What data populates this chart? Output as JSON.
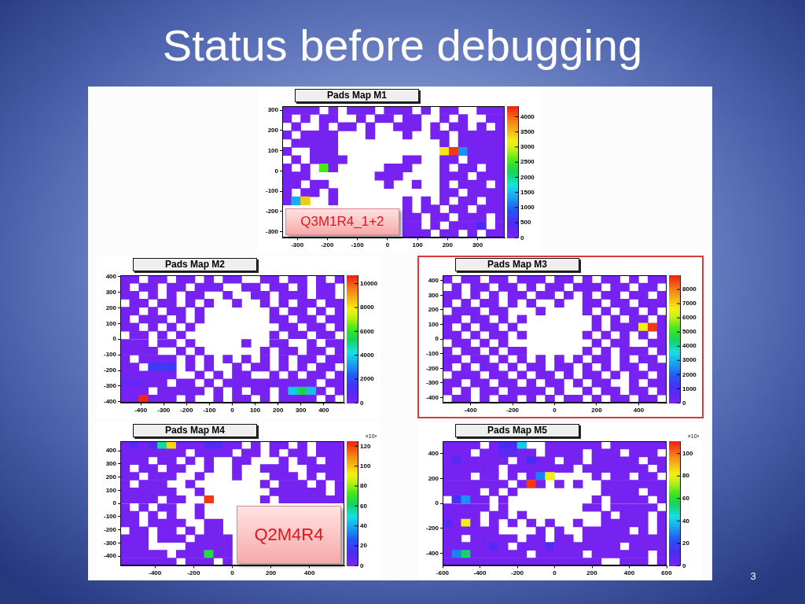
{
  "chart_data": [
    {
      "type": "other",
      "title": "Status before debugging",
      "annotations": [
        "3"
      ]
    },
    {
      "type": "heatmap",
      "title": "Pads Map M1",
      "xlim": [
        -350,
        390
      ],
      "ylim": [
        -330,
        320
      ],
      "xticks": [
        -300,
        -200,
        -100,
        0,
        100,
        200,
        300
      ],
      "yticks": [
        -300,
        -200,
        -100,
        0,
        100,
        200,
        300
      ],
      "clim": [
        0,
        4350
      ],
      "cticks": [
        0,
        500,
        1000,
        1500,
        2000,
        2500,
        3000,
        3500,
        4000
      ],
      "annotations": [
        "Q3M1R4_1+2"
      ],
      "cells": [
        [
          40,
          40,
          40,
          40,
          null,
          40,
          null,
          40,
          40,
          40,
          null,
          40,
          40,
          40,
          null,
          40,
          null,
          40,
          40,
          null,
          null,
          40,
          40,
          40
        ],
        [
          40,
          null,
          40,
          null,
          40,
          40,
          null,
          null,
          40,
          null,
          40,
          40,
          null,
          40,
          40,
          null,
          null,
          40,
          null,
          40,
          null,
          null,
          40,
          40
        ],
        [
          null,
          40,
          null,
          null,
          40,
          null,
          40,
          40,
          null,
          40,
          null,
          null,
          40,
          40,
          40,
          null,
          40,
          null,
          40,
          40,
          null,
          40,
          null,
          40
        ],
        [
          40,
          null,
          40,
          40,
          40,
          40,
          null,
          null,
          null,
          40,
          null,
          null,
          null,
          40,
          null,
          null,
          40,
          40,
          null,
          40,
          40,
          40,
          40,
          40
        ],
        [
          null,
          40,
          40,
          40,
          40,
          40,
          null,
          null,
          null,
          null,
          null,
          null,
          null,
          null,
          null,
          null,
          null,
          40,
          null,
          40,
          40,
          40,
          40,
          40
        ],
        [
          40,
          null,
          null,
          40,
          40,
          40,
          null,
          null,
          null,
          null,
          null,
          null,
          null,
          null,
          null,
          null,
          null,
          3300,
          4200,
          1300,
          40,
          40,
          40,
          40
        ],
        [
          null,
          40,
          null,
          40,
          40,
          40,
          40,
          null,
          null,
          null,
          null,
          null,
          null,
          40,
          40,
          null,
          null,
          40,
          40,
          null,
          40,
          40,
          40,
          40
        ],
        [
          40,
          null,
          40,
          null,
          2600,
          40,
          null,
          null,
          null,
          null,
          null,
          40,
          40,
          40,
          null,
          null,
          null,
          40,
          null,
          40,
          40,
          null,
          40,
          40
        ],
        [
          40,
          40,
          40,
          null,
          null,
          null,
          null,
          null,
          null,
          null,
          40,
          40,
          40,
          null,
          null,
          null,
          null,
          40,
          40,
          40,
          null,
          40,
          40,
          40
        ],
        [
          40,
          40,
          null,
          40,
          40,
          null,
          null,
          null,
          null,
          null,
          null,
          40,
          null,
          null,
          40,
          null,
          null,
          40,
          null,
          40,
          40,
          40,
          null,
          40
        ],
        [
          40,
          null,
          40,
          40,
          null,
          40,
          null,
          null,
          null,
          null,
          null,
          null,
          null,
          null,
          null,
          null,
          null,
          40,
          40,
          null,
          40,
          40,
          40,
          40
        ],
        [
          40,
          1400,
          3400,
          null,
          null,
          40,
          null,
          null,
          null,
          null,
          null,
          null,
          null,
          40,
          null,
          40,
          null,
          40,
          null,
          40,
          40,
          null,
          40,
          40
        ],
        [
          null,
          null,
          null,
          null,
          null,
          null,
          null,
          null,
          null,
          null,
          null,
          null,
          null,
          40,
          null,
          40,
          40,
          null,
          40,
          40,
          null,
          40,
          40,
          40
        ],
        [
          null,
          null,
          null,
          null,
          null,
          null,
          null,
          null,
          null,
          null,
          null,
          null,
          null,
          40,
          40,
          null,
          40,
          40,
          null,
          40,
          40,
          40,
          null,
          40
        ],
        [
          null,
          null,
          null,
          null,
          null,
          null,
          null,
          null,
          null,
          null,
          null,
          null,
          null,
          40,
          40,
          null,
          40,
          null,
          40,
          40,
          40,
          500,
          null,
          40
        ],
        [
          null,
          null,
          null,
          null,
          null,
          null,
          null,
          null,
          null,
          null,
          null,
          null,
          null,
          40,
          40,
          40,
          null,
          40,
          40,
          null,
          40,
          null,
          40,
          40
        ]
      ]
    },
    {
      "type": "heatmap",
      "title": "Pads Map M2",
      "xlim": [
        -490,
        490
      ],
      "ylim": [
        -408,
        408
      ],
      "xticks": [
        -400,
        -300,
        -200,
        -100,
        0,
        100,
        200,
        300,
        400
      ],
      "yticks": [
        -400,
        -300,
        -200,
        -100,
        0,
        100,
        200,
        300,
        400
      ],
      "clim": [
        0,
        10700
      ],
      "cticks": [
        0,
        2000,
        4000,
        6000,
        8000,
        10000
      ],
      "cells": [
        [
          100,
          100,
          null,
          100,
          100,
          null,
          100,
          100,
          null,
          100,
          null,
          100,
          100,
          null,
          null,
          100,
          100,
          null,
          100,
          100,
          null,
          100,
          null,
          100
        ],
        [
          100,
          null,
          100,
          100,
          null,
          100,
          100,
          null,
          100,
          100,
          100,
          null,
          null,
          100,
          100,
          null,
          100,
          100,
          null,
          100,
          null,
          100,
          100,
          null
        ],
        [
          100,
          100,
          null,
          100,
          null,
          100,
          null,
          100,
          100,
          null,
          null,
          100,
          null,
          null,
          100,
          100,
          null,
          100,
          100,
          100,
          null,
          100,
          100,
          null
        ],
        [
          null,
          100,
          100,
          null,
          100,
          100,
          null,
          100,
          null,
          100,
          null,
          null,
          100,
          null,
          null,
          100,
          null,
          100,
          null,
          100,
          100,
          null,
          100,
          100
        ],
        [
          100,
          100,
          null,
          100,
          null,
          100,
          100,
          null,
          100,
          null,
          null,
          null,
          null,
          null,
          null,
          null,
          100,
          null,
          100,
          100,
          null,
          100,
          null,
          100
        ],
        [
          100,
          null,
          100,
          100,
          100,
          null,
          100,
          null,
          100,
          null,
          null,
          null,
          null,
          null,
          null,
          null,
          100,
          100,
          null,
          100,
          100,
          null,
          100,
          100
        ],
        [
          100,
          100,
          null,
          100,
          null,
          100,
          null,
          100,
          null,
          null,
          null,
          null,
          null,
          null,
          null,
          null,
          null,
          100,
          100,
          null,
          100,
          100,
          null,
          100
        ],
        [
          null,
          100,
          100,
          null,
          100,
          null,
          100,
          null,
          null,
          null,
          null,
          null,
          null,
          null,
          null,
          null,
          100,
          null,
          100,
          100,
          null,
          100,
          100,
          null
        ],
        [
          100,
          100,
          100,
          null,
          100,
          100,
          null,
          100,
          null,
          null,
          null,
          null,
          null,
          100,
          null,
          null,
          100,
          100,
          null,
          null,
          100,
          null,
          100,
          100
        ],
        [
          100,
          100,
          100,
          100,
          null,
          null,
          100,
          null,
          100,
          null,
          null,
          null,
          null,
          null,
          null,
          100,
          null,
          100,
          100,
          null,
          100,
          100,
          null,
          100
        ],
        [
          100,
          null,
          100,
          100,
          100,
          100,
          null,
          100,
          null,
          100,
          null,
          100,
          null,
          100,
          null,
          100,
          null,
          100,
          null,
          100,
          100,
          null,
          100,
          100
        ],
        [
          100,
          100,
          null,
          1500,
          1500,
          1500,
          null,
          100,
          null,
          100,
          null,
          null,
          100,
          null,
          100,
          100,
          null,
          100,
          null,
          100,
          null,
          100,
          100,
          null
        ],
        [
          100,
          100,
          100,
          100,
          100,
          100,
          null,
          null,
          100,
          null,
          100,
          null,
          100,
          100,
          null,
          null,
          100,
          null,
          100,
          null,
          100,
          100,
          null,
          100
        ],
        [
          600,
          600,
          600,
          100,
          100,
          null,
          100,
          100,
          null,
          100,
          null,
          100,
          100,
          100,
          100,
          100,
          100,
          100,
          100,
          100,
          100,
          null,
          100,
          100
        ],
        [
          100,
          100,
          100,
          null,
          100,
          100,
          100,
          100,
          100,
          null,
          100,
          null,
          100,
          null,
          100,
          100,
          null,
          100,
          4000,
          5500,
          3800,
          100,
          null,
          100
        ],
        [
          100,
          100,
          10500,
          100,
          100,
          100,
          null,
          100,
          null,
          null,
          100,
          null,
          100,
          100,
          null,
          100,
          null,
          100,
          100,
          100,
          100,
          null,
          100,
          null
        ]
      ]
    },
    {
      "type": "heatmap",
      "title": "Pads Map M3",
      "xlim": [
        -533,
        533
      ],
      "ylim": [
        -437,
        436
      ],
      "xticks": [
        -400,
        -200,
        0,
        200,
        400
      ],
      "yticks": [
        -400,
        -300,
        -200,
        -100,
        0,
        100,
        200,
        300,
        400
      ],
      "clim": [
        0,
        9000
      ],
      "cticks": [
        0,
        1000,
        2000,
        3000,
        4000,
        5000,
        6000,
        7000,
        8000
      ],
      "cells": [
        [
          90,
          null,
          90,
          90,
          null,
          90,
          90,
          null,
          90,
          90,
          90,
          null,
          90,
          90,
          null,
          90,
          null,
          90,
          90,
          null,
          90,
          null,
          90,
          90
        ],
        [
          null,
          90,
          null,
          90,
          90,
          null,
          90,
          90,
          null,
          90,
          null,
          90,
          90,
          null,
          90,
          90,
          90,
          null,
          90,
          90,
          null,
          90,
          90,
          null
        ],
        [
          90,
          90,
          null,
          90,
          null,
          90,
          null,
          90,
          90,
          null,
          90,
          90,
          null,
          90,
          null,
          90,
          null,
          90,
          90,
          null,
          90,
          90,
          null,
          90
        ],
        [
          90,
          null,
          90,
          null,
          90,
          90,
          null,
          90,
          null,
          90,
          null,
          null,
          90,
          null,
          null,
          90,
          90,
          null,
          90,
          90,
          null,
          90,
          90,
          90
        ],
        [
          null,
          90,
          90,
          90,
          null,
          90,
          90,
          null,
          null,
          null,
          90,
          null,
          null,
          null,
          null,
          90,
          null,
          90,
          null,
          90,
          90,
          null,
          90,
          null
        ],
        [
          90,
          90,
          null,
          90,
          90,
          null,
          90,
          null,
          90,
          null,
          null,
          null,
          null,
          null,
          null,
          null,
          90,
          null,
          90,
          null,
          90,
          90,
          null,
          90
        ],
        [
          90,
          null,
          90,
          null,
          90,
          90,
          null,
          90,
          null,
          null,
          null,
          null,
          null,
          null,
          null,
          null,
          90,
          null,
          90,
          90,
          90,
          6500,
          8800,
          90
        ],
        [
          90,
          90,
          null,
          90,
          null,
          90,
          90,
          null,
          90,
          null,
          null,
          null,
          null,
          null,
          null,
          90,
          null,
          90,
          null,
          90,
          null,
          90,
          null,
          90
        ],
        [
          null,
          90,
          90,
          null,
          90,
          null,
          90,
          null,
          null,
          null,
          null,
          null,
          null,
          null,
          null,
          null,
          90,
          null,
          90,
          90,
          null,
          null,
          90,
          90
        ],
        [
          90,
          null,
          90,
          90,
          null,
          90,
          null,
          90,
          90,
          null,
          null,
          null,
          null,
          null,
          null,
          90,
          null,
          90,
          null,
          90,
          90,
          90,
          null,
          90
        ],
        [
          90,
          90,
          null,
          90,
          90,
          null,
          90,
          null,
          90,
          null,
          90,
          null,
          90,
          null,
          90,
          null,
          90,
          90,
          null,
          90,
          null,
          90,
          90,
          null
        ],
        [
          90,
          null,
          90,
          null,
          90,
          90,
          null,
          90,
          null,
          90,
          90,
          null,
          90,
          90,
          null,
          90,
          null,
          90,
          null,
          90,
          90,
          null,
          90,
          90
        ],
        [
          null,
          90,
          90,
          90,
          null,
          90,
          90,
          null,
          90,
          null,
          90,
          90,
          null,
          90,
          null,
          90,
          90,
          null,
          90,
          null,
          90,
          90,
          null,
          90
        ],
        [
          90,
          90,
          null,
          90,
          90,
          null,
          90,
          90,
          null,
          90,
          null,
          90,
          90,
          null,
          90,
          null,
          90,
          90,
          null,
          null,
          90,
          null,
          90,
          90
        ],
        [
          90,
          null,
          90,
          null,
          90,
          90,
          null,
          90,
          90,
          90,
          90,
          null,
          90,
          null,
          null,
          90,
          null,
          90,
          90,
          null,
          90,
          90,
          null,
          90
        ],
        [
          null,
          90,
          90,
          null,
          90,
          null,
          90,
          90,
          null,
          90,
          null,
          90,
          null,
          90,
          90,
          null,
          90,
          null,
          90,
          90,
          null,
          90,
          90,
          null
        ]
      ]
    },
    {
      "type": "heatmap",
      "title": "Pads Map M4",
      "xlim": [
        -580,
        580
      ],
      "ylim": [
        -473,
        473
      ],
      "xticks": [
        -400,
        -200,
        0,
        200,
        400
      ],
      "yticks": [
        -400,
        -300,
        -200,
        -100,
        0,
        100,
        200,
        300,
        400
      ],
      "clim": [
        0,
        125
      ],
      "cticks": [
        0,
        20,
        40,
        60,
        80,
        100,
        120
      ],
      "clabel": "×10³",
      "annotations": [
        "Q2M4R4"
      ],
      "cells": [
        [
          1,
          10,
          1,
          12,
          55,
          95,
          1,
          1,
          1,
          12,
          12,
          1,
          1,
          null,
          1,
          null,
          1,
          1,
          null,
          1,
          null,
          1,
          1,
          1
        ],
        [
          1,
          1,
          1,
          1,
          1,
          1,
          1,
          null,
          1,
          1,
          1,
          1,
          null,
          1,
          1,
          null,
          1,
          null,
          1,
          1,
          null,
          1,
          1,
          1
        ],
        [
          1,
          1,
          1,
          null,
          1,
          1,
          null,
          1,
          null,
          1,
          null,
          null,
          1,
          1,
          null,
          null,
          null,
          1,
          null,
          1,
          1,
          null,
          1,
          1
        ],
        [
          1,
          null,
          1,
          1,
          null,
          1,
          1,
          null,
          null,
          1,
          null,
          null,
          1,
          null,
          null,
          1,
          1,
          1,
          null,
          null,
          1,
          1,
          1,
          1
        ],
        [
          1,
          1,
          null,
          1,
          1,
          1,
          null,
          null,
          1,
          null,
          null,
          null,
          1,
          null,
          null,
          null,
          1,
          1,
          1,
          null,
          1,
          null,
          1,
          1
        ],
        [
          1,
          null,
          1,
          1,
          1,
          null,
          null,
          1,
          null,
          null,
          null,
          null,
          null,
          null,
          null,
          1,
          null,
          1,
          1,
          1,
          null,
          1,
          null,
          1
        ],
        [
          1,
          1,
          1,
          1,
          1,
          1,
          null,
          null,
          1,
          null,
          null,
          null,
          null,
          null,
          null,
          null,
          1,
          1,
          1,
          1,
          1,
          1,
          null,
          1
        ],
        [
          1,
          1,
          1,
          1,
          null,
          1,
          1,
          null,
          null,
          122,
          null,
          null,
          null,
          null,
          null,
          1,
          null,
          1,
          1,
          1,
          1,
          1,
          1,
          1
        ],
        [
          1,
          null,
          1,
          null,
          1,
          1,
          null,
          null,
          1,
          null,
          null,
          null,
          null,
          null,
          null,
          null,
          null,
          null,
          null,
          null,
          null,
          null,
          null,
          null
        ],
        [
          1,
          1,
          null,
          1,
          null,
          1,
          null,
          null,
          1,
          null,
          null,
          null,
          null,
          null,
          null,
          null,
          null,
          null,
          null,
          null,
          null,
          null,
          null,
          null
        ],
        [
          1,
          1,
          null,
          1,
          1,
          1,
          1,
          null,
          null,
          1,
          1,
          null,
          null,
          null,
          null,
          null,
          null,
          null,
          null,
          null,
          null,
          null,
          null,
          null
        ],
        [
          null,
          1,
          1,
          null,
          1,
          1,
          null,
          1,
          null,
          1,
          1,
          null,
          null,
          null,
          null,
          null,
          null,
          null,
          null,
          null,
          null,
          null,
          null,
          null
        ],
        [
          1,
          1,
          1,
          null,
          1,
          1,
          1,
          null,
          1,
          1,
          1,
          1,
          null,
          null,
          null,
          null,
          null,
          null,
          null,
          null,
          null,
          null,
          null,
          null
        ],
        [
          1,
          1,
          1,
          null,
          null,
          null,
          null,
          1,
          1,
          1,
          1,
          1,
          null,
          null,
          null,
          null,
          null,
          null,
          null,
          null,
          null,
          null,
          null,
          null
        ],
        [
          1,
          1,
          1,
          1,
          1,
          null,
          1,
          1,
          1,
          65,
          1,
          1,
          null,
          null,
          null,
          null,
          null,
          null,
          null,
          null,
          null,
          null,
          null,
          null
        ],
        [
          1,
          1,
          1,
          1,
          1,
          1,
          null,
          1,
          1,
          1,
          null,
          1,
          null,
          null,
          null,
          null,
          null,
          null,
          null,
          null,
          null,
          null,
          null,
          null
        ]
      ]
    },
    {
      "type": "heatmap",
      "title": "Pads Map M5",
      "xlim": [
        -600,
        600
      ],
      "ylim": [
        -500,
        500
      ],
      "xticks": [
        -600,
        -400,
        -200,
        0,
        200,
        400,
        600
      ],
      "yticks": [
        -400,
        -200,
        0,
        200,
        400
      ],
      "clim": [
        0,
        111
      ],
      "cticks": [
        0,
        20,
        40,
        60,
        80,
        100
      ],
      "clabel": "×10³",
      "cells": [
        [
          1,
          1,
          1,
          1,
          null,
          1,
          12,
          12,
          40,
          null,
          null,
          1,
          1,
          1,
          1,
          1,
          1,
          null,
          1,
          1,
          1,
          1,
          1,
          1
        ],
        [
          1,
          1,
          1,
          null,
          1,
          1,
          8,
          8,
          1,
          1,
          null,
          1,
          1,
          1,
          1,
          null,
          1,
          1,
          1,
          null,
          1,
          1,
          1,
          null
        ],
        [
          1,
          10,
          1,
          1,
          1,
          1,
          1,
          null,
          1,
          12,
          1,
          1,
          null,
          1,
          1,
          null,
          1,
          1,
          1,
          1,
          1,
          null,
          1,
          1
        ],
        [
          1,
          1,
          1,
          1,
          1,
          1,
          null,
          1,
          1,
          1,
          1,
          1,
          1,
          1,
          null,
          1,
          1,
          1,
          1,
          1,
          1,
          1,
          null,
          1
        ],
        [
          1,
          1,
          1,
          null,
          1,
          1,
          null,
          1,
          null,
          1,
          30,
          82,
          null,
          null,
          null,
          null,
          1,
          null,
          1,
          1,
          null,
          1,
          1,
          null
        ],
        [
          1,
          1,
          1,
          1,
          1,
          1,
          1,
          null,
          1,
          108,
          1,
          null,
          1,
          null,
          1,
          null,
          null,
          1,
          1,
          1,
          1,
          1,
          1,
          1
        ],
        [
          1,
          1,
          1,
          1,
          null,
          1,
          null,
          1,
          null,
          null,
          null,
          null,
          null,
          null,
          null,
          null,
          null,
          1,
          1,
          1,
          1,
          null,
          1,
          1
        ],
        [
          null,
          15,
          32,
          1,
          1,
          null,
          1,
          null,
          null,
          null,
          null,
          null,
          null,
          null,
          null,
          null,
          1,
          null,
          1,
          1,
          1,
          1,
          null,
          1
        ],
        [
          1,
          1,
          1,
          1,
          1,
          null,
          1,
          null,
          null,
          null,
          null,
          null,
          null,
          null,
          null,
          1,
          1,
          null,
          1,
          1,
          1,
          1,
          1,
          null
        ],
        [
          1,
          1,
          1,
          1,
          null,
          1,
          1,
          null,
          1,
          null,
          null,
          null,
          null,
          null,
          null,
          null,
          null,
          1,
          null,
          1,
          1,
          1,
          null,
          1
        ],
        [
          10,
          1,
          80,
          1,
          null,
          1,
          null,
          1,
          null,
          1,
          null,
          1,
          null,
          null,
          1,
          null,
          null,
          1,
          1,
          1,
          1,
          1,
          null,
          1
        ],
        [
          1,
          1,
          1,
          1,
          1,
          1,
          null,
          null,
          null,
          null,
          1,
          null,
          1,
          null,
          null,
          1,
          1,
          1,
          1,
          1,
          null,
          1,
          null,
          1
        ],
        [
          1,
          1,
          null,
          1,
          1,
          1,
          1,
          1,
          null,
          1,
          1,
          null,
          1,
          1,
          null,
          1,
          1,
          1,
          1,
          1,
          1,
          1,
          1,
          1
        ],
        [
          1,
          1,
          1,
          1,
          1,
          10,
          1,
          null,
          1,
          1,
          1,
          10,
          1,
          1,
          1,
          1,
          1,
          1,
          1,
          null,
          1,
          1,
          1,
          1
        ],
        [
          1,
          30,
          55,
          1,
          1,
          1,
          1,
          1,
          1,
          null,
          1,
          1,
          1,
          1,
          1,
          null,
          1,
          1,
          1,
          1,
          1,
          1,
          null,
          1
        ],
        [
          1,
          1,
          1,
          1,
          1,
          1,
          1,
          1,
          1,
          1,
          1,
          1,
          1,
          1,
          1,
          1,
          1,
          null,
          null,
          1,
          1,
          1,
          null,
          1
        ]
      ]
    }
  ]
}
